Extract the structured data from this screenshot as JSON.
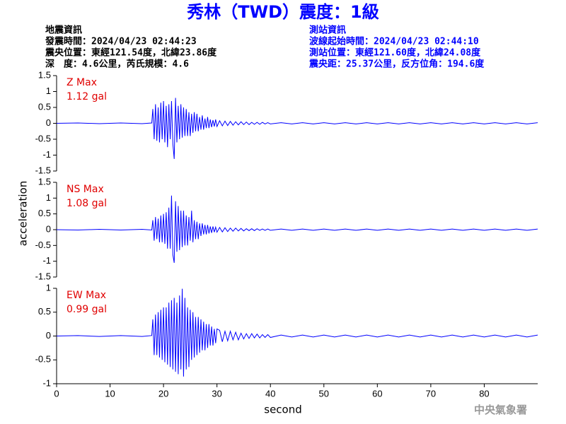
{
  "header": {
    "title": "秀林（TWD）震度：1級",
    "left": [
      "地震資訊",
      "發震時間：2024/04/23 02:44:23",
      "震央位置：東經121.54度，北緯23.86度",
      "深　度：4.6公里，芮氏規模：4.6"
    ],
    "right": [
      "測站資訊",
      "波線起始時間：2024/04/23 02:44:10",
      "測站位置：東經121.60度，北緯24.08度",
      "震央距：25.37公里，反方位角：194.6度"
    ],
    "footer": "中央氣象署"
  },
  "chart_data": {
    "type": "line",
    "xlabel": "second",
    "ylabel": "acceleration",
    "xlim": [
      0,
      90
    ],
    "xticks": [
      0,
      10,
      20,
      30,
      40,
      50,
      60,
      70,
      80
    ],
    "x": [
      0,
      4,
      8,
      12,
      16,
      17.8,
      18,
      18.25,
      18.5,
      18.75,
      19,
      19.25,
      19.5,
      19.75,
      20,
      20.25,
      20.5,
      20.75,
      21,
      21.25,
      21.5,
      21.75,
      22,
      22.25,
      22.5,
      22.75,
      23,
      23.25,
      23.5,
      23.75,
      24,
      24.25,
      24.5,
      24.75,
      25,
      25.25,
      25.5,
      25.75,
      26,
      26.25,
      26.5,
      26.75,
      27,
      27.25,
      27.5,
      27.75,
      28,
      28.25,
      28.5,
      28.75,
      29,
      29.25,
      29.5,
      29.75,
      30,
      30.5,
      31,
      31.5,
      32,
      32.5,
      33,
      33.5,
      34,
      34.5,
      35,
      35.5,
      36,
      36.5,
      37,
      37.5,
      38,
      38.5,
      39,
      39.5,
      40,
      42,
      44,
      46,
      48,
      50,
      52,
      54,
      56,
      58,
      60,
      62,
      64,
      66,
      68,
      70,
      72,
      74,
      76,
      78,
      80,
      82,
      84,
      86,
      88,
      90
    ],
    "panels": [
      {
        "name": "Z Max",
        "max_label": "1.12 gal",
        "color": "#0000ff",
        "ylim": [
          -1.5,
          1.5
        ],
        "yticks": [
          -1.5,
          -1,
          -0.5,
          0,
          0.5,
          1,
          1.5
        ],
        "values": [
          0,
          0.01,
          -0.01,
          0.01,
          -0.01,
          0.01,
          0.45,
          -0.5,
          0.6,
          -0.55,
          0.5,
          -0.6,
          0.65,
          -0.5,
          0.7,
          -0.6,
          0.55,
          -0.75,
          0.6,
          -0.5,
          0.7,
          -0.65,
          -1.12,
          0.8,
          -0.6,
          0.55,
          -0.5,
          0.6,
          -0.45,
          0.5,
          -0.4,
          0.45,
          -0.4,
          0.35,
          -0.4,
          0.3,
          -0.3,
          0.35,
          -0.25,
          0.3,
          -0.25,
          0.2,
          -0.2,
          0.25,
          -0.2,
          0.15,
          -0.15,
          0.2,
          -0.15,
          0.12,
          -0.12,
          0.1,
          -0.1,
          0.12,
          -0.1,
          0.08,
          -0.08,
          0.07,
          -0.07,
          0.06,
          -0.06,
          0.05,
          -0.05,
          0.05,
          -0.04,
          0.04,
          -0.04,
          0.03,
          -0.03,
          0.03,
          -0.03,
          0.03,
          -0.02,
          0.02,
          -0.02,
          0.02,
          -0.02,
          0.02,
          -0.02,
          0.02,
          -0.02,
          0.02,
          -0.02,
          0.02,
          -0.02,
          0.02,
          -0.02,
          0.02,
          -0.02,
          0.02,
          -0.02,
          0.02,
          -0.02,
          0.02,
          -0.02,
          0.02,
          -0.02,
          0.02,
          -0.02,
          0.02
        ]
      },
      {
        "name": "NS Max",
        "max_label": "1.08 gal",
        "color": "#0000ff",
        "ylim": [
          -1.5,
          1.5
        ],
        "yticks": [
          -1.5,
          -1,
          -0.5,
          0,
          0.5,
          1,
          1.5
        ],
        "values": [
          0,
          -0.01,
          0.01,
          -0.01,
          0.01,
          -0.01,
          0.3,
          -0.35,
          0.4,
          -0.3,
          0.35,
          -0.4,
          0.45,
          -0.4,
          0.5,
          -0.45,
          0.55,
          -0.6,
          0.7,
          -0.6,
          1.08,
          -0.8,
          -1.05,
          0.9,
          -0.7,
          0.75,
          -0.65,
          0.6,
          -0.55,
          0.6,
          -0.5,
          0.45,
          -0.5,
          0.4,
          -0.35,
          0.6,
          -0.4,
          0.3,
          -0.3,
          0.25,
          -0.3,
          0.2,
          -0.2,
          0.2,
          -0.15,
          0.15,
          -0.15,
          0.15,
          -0.12,
          0.1,
          -0.1,
          0.1,
          -0.08,
          0.08,
          -0.08,
          0.07,
          -0.07,
          0.06,
          -0.06,
          0.05,
          -0.05,
          0.05,
          -0.04,
          0.04,
          -0.04,
          0.03,
          -0.03,
          0.03,
          -0.03,
          0.03,
          -0.02,
          0.02,
          -0.02,
          0.02,
          -0.02,
          0.02,
          -0.02,
          0.02,
          -0.02,
          0.02,
          -0.02,
          0.02,
          -0.02,
          0.02,
          -0.02,
          0.02,
          -0.02,
          0.02,
          -0.02,
          0.02,
          -0.02,
          0.02,
          -0.02,
          0.02,
          -0.02,
          0.02,
          -0.02,
          0.02,
          -0.02,
          0.02
        ]
      },
      {
        "name": "EW Max",
        "max_label": "0.99 gal",
        "color": "#0000ff",
        "ylim": [
          -1,
          1
        ],
        "yticks": [
          -1,
          -0.5,
          0,
          0.5,
          1
        ],
        "values": [
          0,
          0.01,
          -0.01,
          0.01,
          -0.01,
          0.01,
          0.35,
          -0.4,
          0.45,
          -0.4,
          0.5,
          -0.45,
          0.55,
          -0.5,
          0.6,
          -0.55,
          0.6,
          -0.6,
          0.7,
          -0.65,
          0.75,
          -0.7,
          0.8,
          -0.75,
          0.7,
          -0.8,
          0.85,
          -0.7,
          0.99,
          -0.85,
          0.8,
          -0.7,
          0.6,
          -0.65,
          0.55,
          -0.5,
          0.5,
          -0.45,
          0.4,
          -0.4,
          0.4,
          -0.35,
          0.35,
          -0.3,
          0.3,
          -0.3,
          0.25,
          -0.25,
          0.25,
          -0.2,
          0.2,
          -0.2,
          0.15,
          -0.15,
          0.15,
          0.12,
          -0.12,
          0.1,
          -0.1,
          0.1,
          -0.08,
          0.08,
          -0.08,
          0.06,
          -0.06,
          0.05,
          -0.05,
          0.05,
          -0.04,
          0.04,
          -0.04,
          0.03,
          -0.03,
          0.03,
          -0.03,
          0.02,
          -0.02,
          0.02,
          -0.02,
          0.02,
          -0.02,
          0.02,
          -0.02,
          0.02,
          -0.02,
          0.02,
          -0.02,
          0.02,
          -0.02,
          0.02,
          -0.02,
          0.02,
          -0.02,
          0.02,
          -0.02,
          0.02,
          -0.02,
          0.02,
          -0.02,
          0.02
        ]
      }
    ]
  }
}
